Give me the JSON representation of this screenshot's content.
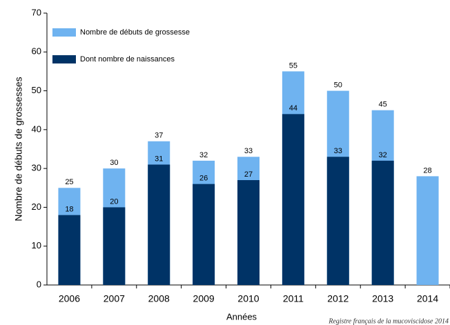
{
  "chart_data": {
    "type": "bar",
    "x_label": "Années",
    "y_label": "Nombre de débuts de grossesses",
    "source": "Registre français de la mucoviscidose 2014",
    "categories": [
      "2006",
      "2007",
      "2008",
      "2009",
      "2010",
      "2011",
      "2012",
      "2013",
      "2014"
    ],
    "series": [
      {
        "name": "Nombre de débuts de grossesse",
        "color": "#6fb3f0",
        "values": [
          25,
          30,
          37,
          32,
          33,
          55,
          50,
          45,
          28
        ]
      },
      {
        "name": "Dont nombre de naissances",
        "color": "#003366",
        "values": [
          18,
          20,
          31,
          26,
          27,
          44,
          33,
          32,
          null
        ]
      }
    ],
    "ylim": [
      0,
      70
    ],
    "yticks": [
      0,
      10,
      20,
      30,
      40,
      50,
      60,
      70
    ],
    "grid": false,
    "legend": "upper left"
  }
}
